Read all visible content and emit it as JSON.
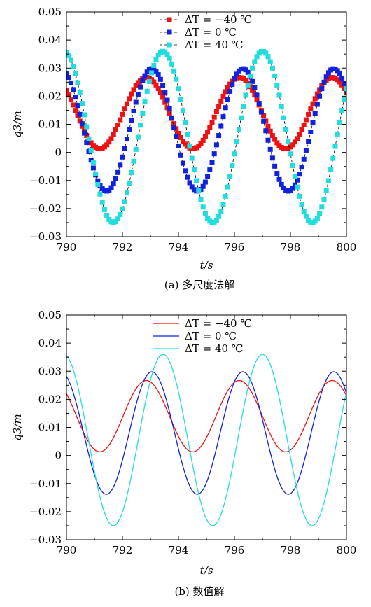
{
  "chart_data": [
    {
      "type": "scatter",
      "xlabel": "t/s",
      "ylabel": "q3/m",
      "xlim": [
        790,
        800
      ],
      "ylim": [
        -0.03,
        0.05
      ],
      "x_ticks": [
        "790",
        "792",
        "794",
        "796",
        "798",
        "800"
      ],
      "y_ticks": [
        "−0.03",
        "−0.02",
        "−0.01",
        "0",
        "0.01",
        "0.02",
        "0.03",
        "0.04",
        "0.05"
      ],
      "caption": "(a) 多尺度法解",
      "legend_position": "top-center",
      "series": [
        {
          "name": "ΔT = −40 ℃",
          "color": "#ee1111",
          "mean": 0.014,
          "amplitude": 0.0127,
          "period": 3.32,
          "peak_t": 792.85
        },
        {
          "name": "ΔT = 0 ℃",
          "color": "#1122dd",
          "mean": 0.008,
          "amplitude": 0.0218,
          "period": 3.25,
          "peak_t": 793.05
        },
        {
          "name": "ΔT = 40 ℃",
          "color": "#22dddd",
          "mean": 0.0055,
          "amplitude": 0.0305,
          "period": 3.55,
          "peak_t": 793.45
        }
      ]
    },
    {
      "type": "line",
      "xlabel": "t/s",
      "ylabel": "q3/m",
      "xlim": [
        790,
        800
      ],
      "ylim": [
        -0.03,
        0.05
      ],
      "x_ticks": [
        "790",
        "792",
        "794",
        "796",
        "798",
        "800"
      ],
      "y_ticks": [
        "−0.03",
        "−0.02",
        "−0.01",
        "0",
        "0.01",
        "0.02",
        "0.03",
        "0.04",
        "0.05"
      ],
      "caption": "(b) 数值解",
      "legend_position": "top-center",
      "series": [
        {
          "name": "ΔT = −40 ℃",
          "color": "#ee1111",
          "mean": 0.014,
          "amplitude": 0.0127,
          "period": 3.32,
          "peak_t": 792.85
        },
        {
          "name": "ΔT = 0 ℃",
          "color": "#1122dd",
          "mean": 0.008,
          "amplitude": 0.0218,
          "period": 3.25,
          "peak_t": 793.05
        },
        {
          "name": "ΔT = 40 ℃",
          "color": "#22dddd",
          "mean": 0.0055,
          "amplitude": 0.0305,
          "period": 3.55,
          "peak_t": 793.45
        }
      ]
    }
  ]
}
